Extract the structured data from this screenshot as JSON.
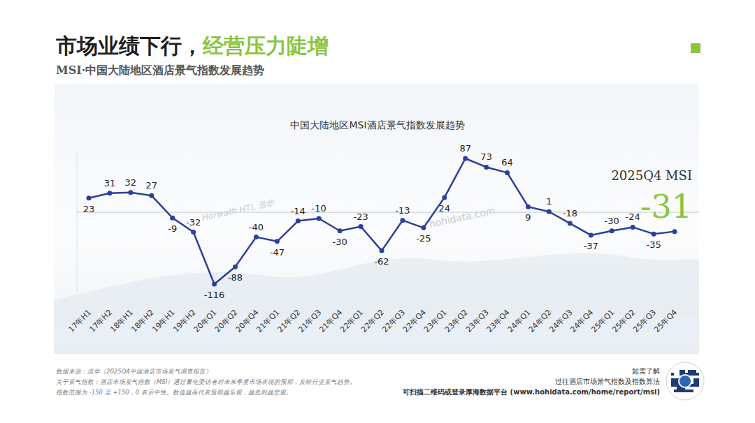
{
  "page_title": [
    "市场业绩下行，",
    "经营压力陡增"
  ],
  "page_subtitle": "MSI·中国大陆地区酒店景气指数发展趋势",
  "watermarks": [
    "Horwath HTL 浩华",
    "hohidata.com"
  ],
  "chart_data": {
    "type": "line",
    "title": "中国大陆地区MSI酒店景气指数发展趋势",
    "categories": [
      "17年H1",
      "17年H2",
      "18年H1",
      "18年H2",
      "19年H1",
      "19年H2",
      "20年Q1",
      "20年Q2",
      "20年Q4",
      "21年Q1",
      "21年Q2",
      "21年Q3",
      "21年Q4",
      "22年Q1",
      "22年Q2",
      "22年Q3",
      "22年Q4",
      "23年Q1",
      "23年Q2",
      "23年Q3",
      "23年Q4",
      "24年Q1",
      "24年Q2",
      "24年Q3",
      "24年Q4",
      "25年Q1",
      "25年Q2",
      "25年Q3",
      "25年Q4"
    ],
    "values": [
      23,
      31,
      32,
      27,
      -9,
      -32,
      -116,
      -88,
      -40,
      -47,
      -14,
      -10,
      -30,
      -23,
      -62,
      -13,
      -25,
      24,
      87,
      73,
      64,
      9,
      1,
      -18,
      -37,
      -30,
      -24,
      -35,
      -31
    ],
    "value_labels": [
      "23",
      "31",
      "32",
      "27",
      "-9",
      "-32",
      "-116",
      "-88",
      "-40",
      "-47",
      "-14",
      "-10",
      "-30",
      "-23",
      "-62",
      "-13",
      "-25",
      "24",
      "87",
      "73",
      "64",
      "9",
      "1",
      "-18",
      "-37",
      "-30",
      "-24",
      "-35",
      null
    ],
    "color": "#2d3f9c",
    "marker": "circle",
    "line_style": "solid",
    "data_labels": true,
    "ylim": [
      -130,
      100
    ],
    "yticks": [
      0
    ],
    "grid": true,
    "tick_labels": "x",
    "annotation": {
      "title": "2025Q4 MSI",
      "value": "-31"
    }
  },
  "footer": {
    "notes": [
      "数据来源：浩华《2025Q4中国酒店市场景气调查报告》",
      "关于景气指数：酒店市场景气指数（MSI）通过量化受访者对未来季度市场表现的预期，反映行业景气趋势。",
      "指数范围为 -150 至 +150，0 表示中性。数值越高代表预期越乐观，越低则越悲观。"
    ],
    "contact": [
      "如需了解",
      "过往酒店市场景气指数及指数算法",
      "可扫描二维码或登录厚海数据平台 (www.hohidata.com/home/report/msi)"
    ]
  }
}
